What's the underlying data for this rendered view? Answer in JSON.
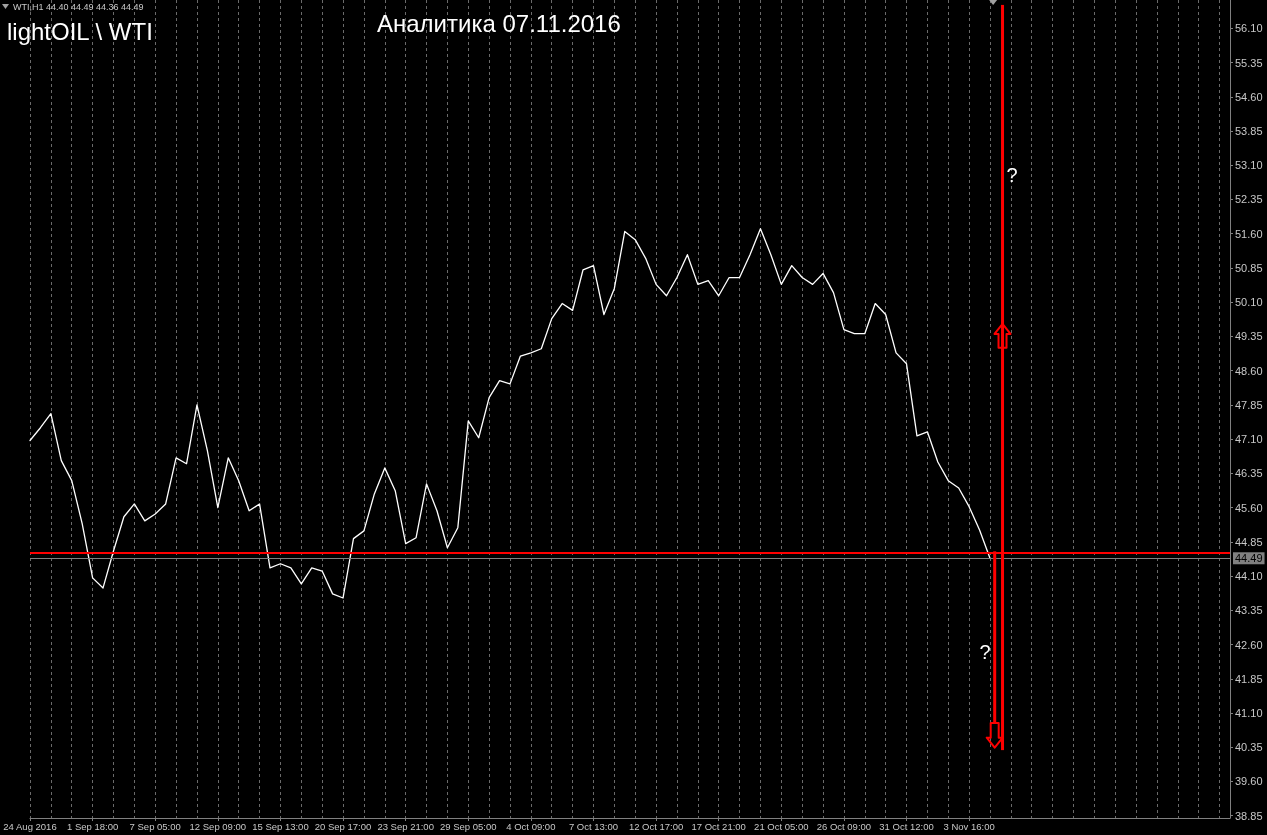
{
  "chart_data": {
    "type": "line",
    "title": "Аналитика 07.11.2016",
    "subtitle": "lightOIL \\ WTI",
    "annotations": [
      "WTI,H1 44.40 44.49 44.36 44.49",
      "?",
      "?"
    ],
    "categories": [
      "24 Aug 2016",
      null,
      null,
      null,
      null,
      null,
      "1 Sep 18:00",
      null,
      null,
      null,
      null,
      null,
      "7 Sep 05:00",
      null,
      null,
      null,
      null,
      null,
      "12 Sep 09:00",
      null,
      null,
      null,
      null,
      null,
      "15 Sep 13:00",
      null,
      null,
      null,
      null,
      null,
      "20 Sep 17:00",
      null,
      null,
      null,
      null,
      null,
      "23 Sep 21:00",
      null,
      null,
      null,
      null,
      null,
      "29 Sep 05:00",
      null,
      null,
      null,
      null,
      null,
      "4 Oct 09:00",
      null,
      null,
      null,
      null,
      null,
      "7 Oct 13:00",
      null,
      null,
      null,
      null,
      null,
      "12 Oct 17:00",
      null,
      null,
      null,
      null,
      null,
      "17 Oct 21:00",
      null,
      null,
      null,
      null,
      null,
      "21 Oct 05:00",
      null,
      null,
      null,
      null,
      null,
      "26 Oct 09:00",
      null,
      null,
      null,
      null,
      null,
      "31 Oct 12:00",
      null,
      null,
      null,
      null,
      null,
      "3 Nov 16:00",
      null,
      null,
      null,
      null,
      null,
      null,
      null,
      null,
      null,
      null,
      null,
      null,
      null,
      null,
      null,
      null,
      null,
      null,
      null,
      null,
      null,
      null,
      null,
      null,
      null
    ],
    "series": [
      {
        "color": "#ffffff",
        "values": [
          47.07,
          47.35,
          47.66,
          46.63,
          46.19,
          45.25,
          44.06,
          43.84,
          44.65,
          45.4,
          45.68,
          45.31,
          45.46,
          45.68,
          46.69,
          46.56,
          47.85,
          46.85,
          45.6,
          46.69,
          46.19,
          45.53,
          45.68,
          44.28,
          44.37,
          44.28,
          43.93,
          44.28,
          44.21,
          43.71,
          43.62,
          44.92,
          45.09,
          45.9,
          46.47,
          45.97,
          44.81,
          44.94,
          46.12,
          45.53,
          44.72,
          45.16,
          47.5,
          47.13,
          48.01,
          48.38,
          48.31,
          48.92,
          48.99,
          49.08,
          49.74,
          50.07,
          49.92,
          50.81,
          50.9,
          49.83,
          50.4,
          51.65,
          51.47,
          51.06,
          50.49,
          50.24,
          50.64,
          51.14,
          50.49,
          50.57,
          50.24,
          50.64,
          50.64,
          51.14,
          51.71,
          51.14,
          50.49,
          50.9,
          50.64,
          50.49,
          50.73,
          50.31,
          49.5,
          49.41,
          49.41,
          50.07,
          49.83,
          48.99,
          48.75,
          47.17,
          47.26,
          46.6,
          46.19,
          46.03,
          45.62,
          45.11,
          44.49,
          null,
          null,
          null,
          null,
          null,
          null,
          null,
          null,
          null,
          null,
          null,
          null,
          null,
          null,
          null,
          null,
          null,
          null,
          null,
          null,
          null,
          null,
          null
        ]
      }
    ],
    "ylim": [
      38.8,
      56.72
    ],
    "yticks": [
      38.85,
      {
        "value": 39.6,
        "label": "39.60"
      },
      40.35,
      {
        "value": 41.1,
        "label": "41.10"
      },
      41.85,
      {
        "value": 42.6,
        "label": "42.60"
      },
      43.35,
      {
        "value": 44.1,
        "label": "44.10"
      },
      44.85,
      {
        "value": 45.6,
        "label": "45.60"
      },
      46.35,
      {
        "value": 47.1,
        "label": "47.10"
      },
      47.85,
      {
        "value": 48.6,
        "label": "48.60"
      },
      49.35,
      {
        "value": 50.1,
        "label": "50.10"
      },
      50.85,
      {
        "value": 51.6,
        "label": "51.60"
      },
      52.35,
      {
        "value": 53.1,
        "label": "53.10"
      },
      53.85,
      {
        "value": 54.6,
        "label": "54.60"
      },
      55.35,
      {
        "value": 56.1,
        "label": "56.10"
      }
    ],
    "ref_lines": [
      {
        "axis": "y",
        "value": 44.6,
        "color": "#ff0000"
      },
      {
        "axis": "y",
        "value": 44.49,
        "label": "44.49",
        "color": "#808080"
      }
    ],
    "grid": "x",
    "marker": "none"
  }
}
